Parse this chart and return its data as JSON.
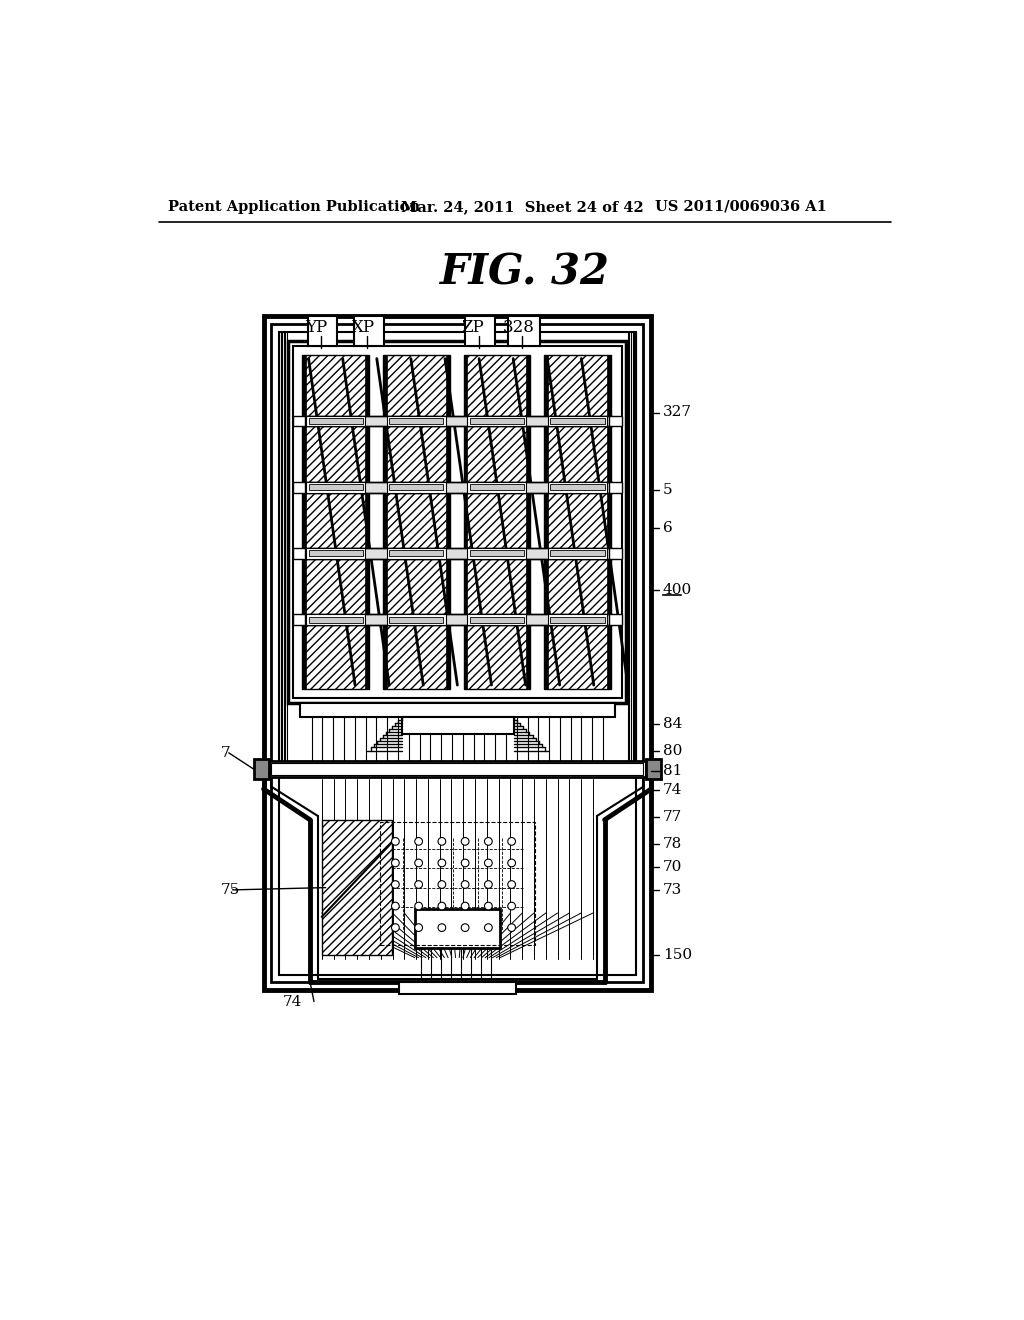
{
  "bg_color": "#ffffff",
  "header_left": "Patent Application Publication",
  "header_center": "Mar. 24, 2011  Sheet 24 of 42",
  "header_right": "US 2011/0069036 A1",
  "title": "FIG. 32",
  "top_labels": [
    "YP",
    "XP",
    "ZP",
    "328"
  ],
  "right_labels": [
    "327",
    "5",
    "6",
    "400",
    "84",
    "80",
    "81",
    "74",
    "77",
    "78",
    "70",
    "73",
    "150"
  ],
  "left_labels": [
    "7",
    "75"
  ],
  "bot_label": "74"
}
